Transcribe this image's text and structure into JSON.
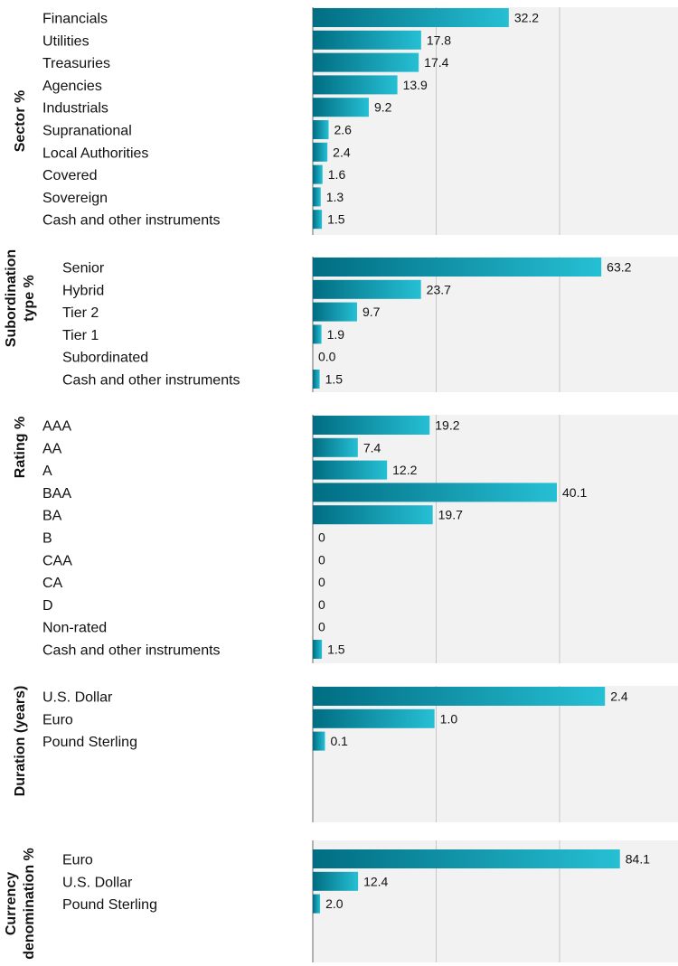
{
  "colors": {
    "bar_dark": "#006d82",
    "bar_light": "#26bfd4",
    "plot_bg": "#f2f2f2",
    "gridline": "#c8c8c8",
    "axis": "#999999",
    "text": "#111111"
  },
  "chart_data": [
    {
      "type": "bar",
      "orientation": "horizontal",
      "title": "Sector %",
      "categories": [
        "Financials",
        "Utilities",
        "Treasuries",
        "Agencies",
        "Industrials",
        "Supranational",
        "Local Authorities",
        "Covered",
        "Sovereign",
        "Cash and other instruments"
      ],
      "values": [
        32.2,
        17.8,
        17.4,
        13.9,
        9.2,
        2.6,
        2.4,
        1.6,
        1.3,
        1.5
      ],
      "value_labels": [
        "32.2",
        "17.8",
        "17.4",
        "13.9",
        "9.2",
        "2.6",
        "2.4",
        "1.6",
        "1.3",
        "1.5"
      ],
      "xlim": [
        0,
        60
      ],
      "grid": true,
      "legend": "none"
    },
    {
      "type": "bar",
      "orientation": "horizontal",
      "title_lines": [
        "Subordination",
        "type %"
      ],
      "categories": [
        "Senior",
        "Hybrid",
        "Tier 2",
        "Tier 1",
        "Subordinated",
        "Cash and other instruments"
      ],
      "values": [
        63.2,
        23.7,
        9.7,
        1.9,
        0.0,
        1.5
      ],
      "value_labels": [
        "63.2",
        "23.7",
        "9.7",
        "1.9",
        "0.0",
        "1.5"
      ],
      "xlim": [
        0,
        80
      ],
      "grid": true,
      "legend": "none"
    },
    {
      "type": "bar",
      "orientation": "horizontal",
      "title": "Rating %",
      "categories": [
        "AAA",
        "AA",
        "A",
        "BAA",
        "BA",
        "B",
        "CAA",
        "CA",
        "D",
        "Non-rated",
        "Cash and other instruments"
      ],
      "values": [
        19.2,
        7.4,
        12.2,
        40.1,
        19.7,
        0,
        0,
        0,
        0,
        0,
        1.5
      ],
      "value_labels": [
        "19.2",
        "7.4",
        "12.2",
        "40.1",
        "19.7",
        "0",
        "0",
        "0",
        "0",
        "0",
        "1.5"
      ],
      "xlim": [
        0,
        60
      ],
      "grid": true,
      "legend": "none"
    },
    {
      "type": "bar",
      "orientation": "horizontal",
      "title": "Duration (years)",
      "categories": [
        "U.S. Dollar",
        "Euro",
        "Pound Sterling"
      ],
      "values": [
        2.4,
        1.0,
        0.1
      ],
      "value_labels": [
        "2.4",
        "1.0",
        "0.1"
      ],
      "xlim": [
        0,
        3
      ],
      "grid": true,
      "legend": "none"
    },
    {
      "type": "bar",
      "orientation": "horizontal",
      "title_lines": [
        "Currency",
        "denomination %"
      ],
      "categories": [
        "Euro",
        "U.S. Dollar",
        "Pound Sterling"
      ],
      "values": [
        84.1,
        12.4,
        2.0
      ],
      "value_labels": [
        "84.1",
        "12.4",
        "2.0"
      ],
      "xlim": [
        0,
        100
      ],
      "grid": true,
      "legend": "none"
    }
  ]
}
